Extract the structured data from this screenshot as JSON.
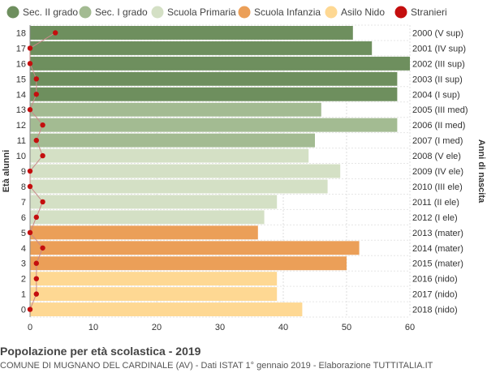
{
  "chart_data": {
    "type": "bar",
    "orientation": "horizontal",
    "title": "Popolazione per età scolastica - 2019",
    "ylabel_left": "Età alunni",
    "ylabel_right": "Anni di nascita",
    "xlim": [
      0,
      60
    ],
    "xticks": [
      0,
      10,
      20,
      30,
      40,
      50,
      60
    ],
    "grid": true,
    "legend_position": "top",
    "legend": [
      {
        "name": "Sec. II grado",
        "color": "#6e8f5e",
        "marker": "circle"
      },
      {
        "name": "Sec. I grado",
        "color": "#a3bb92",
        "marker": "circle"
      },
      {
        "name": "Scuola Primaria",
        "color": "#d4e0c5",
        "marker": "circle"
      },
      {
        "name": "Scuola Infanzia",
        "color": "#eb9f58",
        "marker": "circle"
      },
      {
        "name": "Asilo Nido",
        "color": "#fed893",
        "marker": "circle"
      },
      {
        "name": "Stranieri",
        "color": "#c40e0e",
        "marker": "circle"
      }
    ],
    "rows": [
      {
        "age": "18",
        "birth": "2000 (V sup)",
        "value": 51,
        "stranieri": 4,
        "group": 0
      },
      {
        "age": "17",
        "birth": "2001 (IV sup)",
        "value": 54,
        "stranieri": 0,
        "group": 0
      },
      {
        "age": "16",
        "birth": "2002 (III sup)",
        "value": 60,
        "stranieri": 0,
        "group": 0
      },
      {
        "age": "15",
        "birth": "2003 (II sup)",
        "value": 58,
        "stranieri": 1,
        "group": 0
      },
      {
        "age": "14",
        "birth": "2004 (I sup)",
        "value": 58,
        "stranieri": 1,
        "group": 0
      },
      {
        "age": "13",
        "birth": "2005 (III med)",
        "value": 46,
        "stranieri": 0,
        "group": 1
      },
      {
        "age": "12",
        "birth": "2006 (II med)",
        "value": 58,
        "stranieri": 2,
        "group": 1
      },
      {
        "age": "11",
        "birth": "2007 (I med)",
        "value": 45,
        "stranieri": 1,
        "group": 1
      },
      {
        "age": "10",
        "birth": "2008 (V ele)",
        "value": 44,
        "stranieri": 2,
        "group": 2
      },
      {
        "age": "9",
        "birth": "2009 (IV ele)",
        "value": 49,
        "stranieri": 0,
        "group": 2
      },
      {
        "age": "8",
        "birth": "2010 (III ele)",
        "value": 47,
        "stranieri": 0,
        "group": 2
      },
      {
        "age": "7",
        "birth": "2011 (II ele)",
        "value": 39,
        "stranieri": 2,
        "group": 2
      },
      {
        "age": "6",
        "birth": "2012 (I ele)",
        "value": 37,
        "stranieri": 1,
        "group": 2
      },
      {
        "age": "5",
        "birth": "2013 (mater)",
        "value": 36,
        "stranieri": 0,
        "group": 3
      },
      {
        "age": "4",
        "birth": "2014 (mater)",
        "value": 52,
        "stranieri": 2,
        "group": 3
      },
      {
        "age": "3",
        "birth": "2015 (mater)",
        "value": 50,
        "stranieri": 1,
        "group": 3
      },
      {
        "age": "2",
        "birth": "2016 (nido)",
        "value": 39,
        "stranieri": 1,
        "group": 4
      },
      {
        "age": "1",
        "birth": "2017 (nido)",
        "value": 39,
        "stranieri": 1,
        "group": 4
      },
      {
        "age": "0",
        "birth": "2018 (nido)",
        "value": 43,
        "stranieri": 0,
        "group": 4
      }
    ]
  },
  "footer": {
    "title": "Popolazione per età scolastica - 2019",
    "subtitle_left": "COMUNE DI MUGNANO DEL CARDINALE (AV) - Dati ISTAT 1° gennaio 2019 - Elaborazione TUTTITALIA.IT"
  }
}
